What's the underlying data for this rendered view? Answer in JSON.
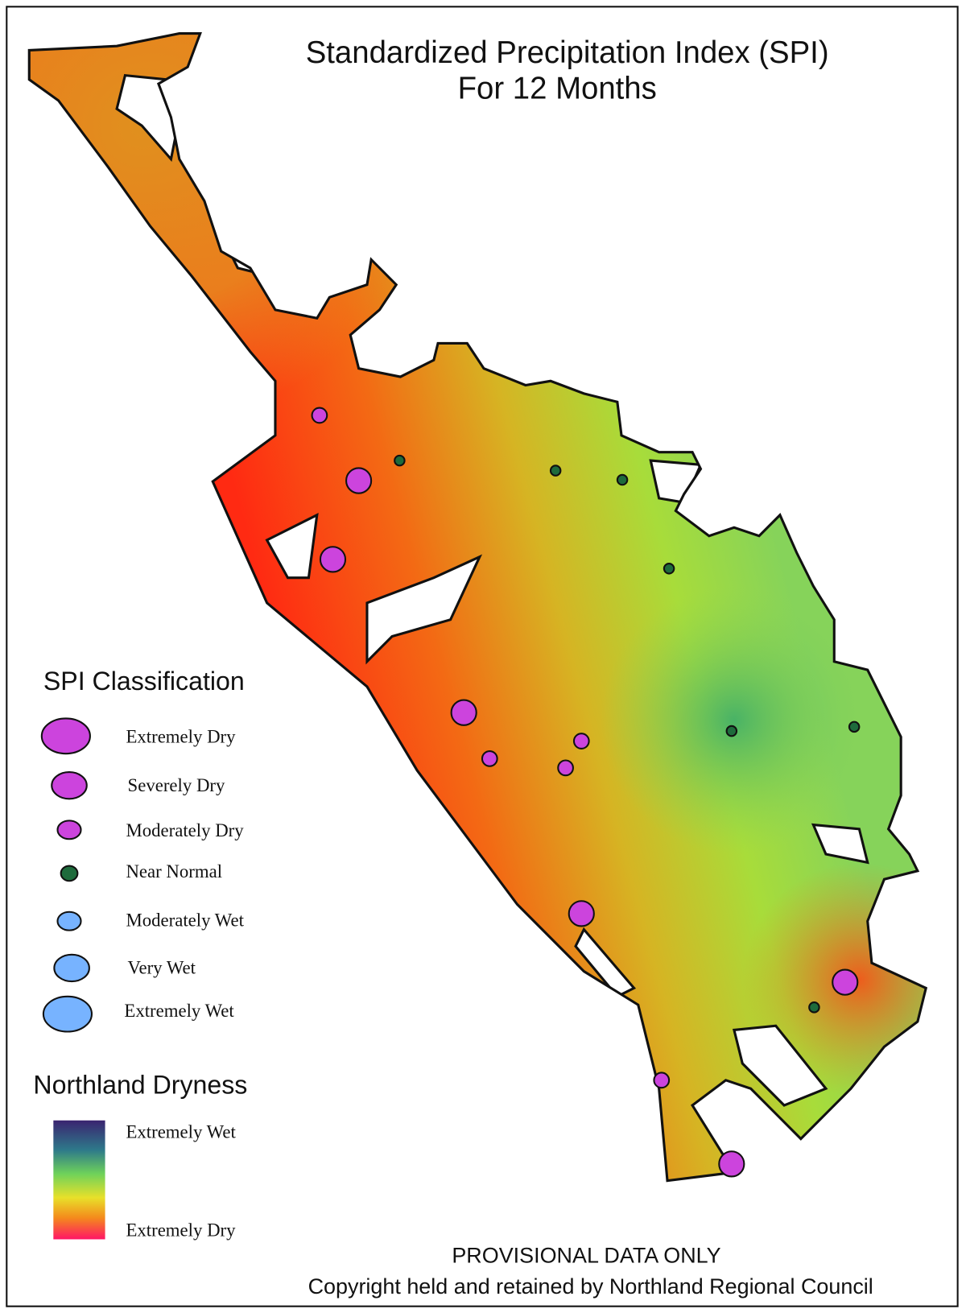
{
  "title": [
    "Standardized Precipitation Index (SPI)",
    "For 12 Months"
  ],
  "spi_legend": {
    "title": "SPI Classification",
    "classes": [
      "Extremely Dry",
      "Severely Dry",
      "Moderately Dry",
      "Near Normal",
      "Moderately Wet",
      "Very Wet",
      "Extremely Wet"
    ]
  },
  "dryness_legend": {
    "title": "Northland Dryness",
    "top": "Extremely Wet",
    "bottom": "Extremely Dry"
  },
  "footer": [
    "PROVISIONAL DATA ONLY",
    "Copyright held and retained by Northland Regional Council"
  ]
}
